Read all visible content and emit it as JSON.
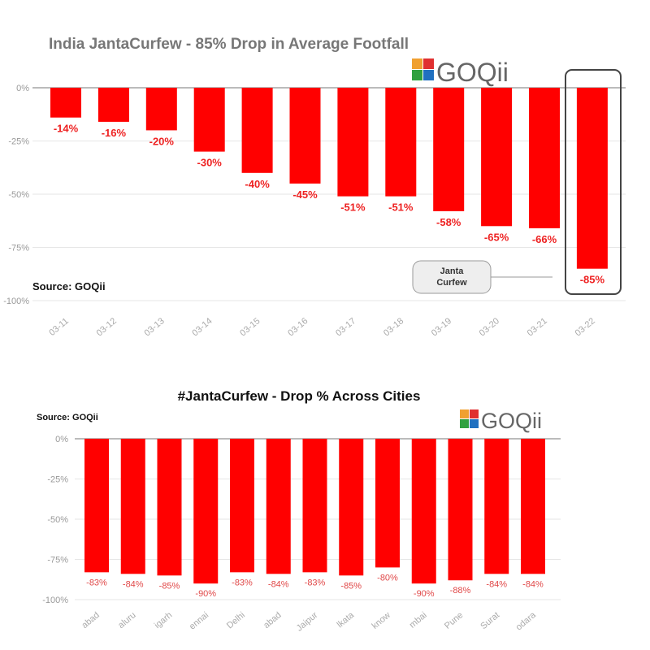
{
  "chart_data": [
    {
      "type": "bar",
      "title": "India JantaCurfew - 85% Drop in Average Footfall",
      "source": "Source: GOQii",
      "logo": "GOQii",
      "categories": [
        "03-11",
        "03-12",
        "03-13",
        "03-14",
        "03-15",
        "03-16",
        "03-17",
        "03-18",
        "03-19",
        "03-20",
        "03-21",
        "03-22"
      ],
      "values": [
        -14,
        -16,
        -20,
        -30,
        -40,
        -45,
        -51,
        -51,
        -58,
        -65,
        -66,
        -85
      ],
      "data_labels": [
        "-14%",
        "-16%",
        "-20%",
        "-30%",
        "-40%",
        "-45%",
        "-51%",
        "-51%",
        "-58%",
        "-65%",
        "-66%",
        "-85%"
      ],
      "yticks": [
        "0%",
        "-25%",
        "-50%",
        "-75%",
        "-100%"
      ],
      "ylim": [
        -100,
        0
      ],
      "grid": true,
      "bar_color": "#ff0000",
      "annotation": {
        "line1": "Janta",
        "line2": "Curfew",
        "highlighted_category": "03-22"
      }
    },
    {
      "type": "bar",
      "title": "#JantaCurfew - Drop % Across Cities",
      "source": "Source: GOQii",
      "logo": "GOQii",
      "categories": [
        "abad",
        "aluru",
        "igarh",
        "ennai",
        "Delhi",
        "abad",
        "Jaipur",
        "lkata",
        "know",
        "mbai",
        "Pune",
        "Surat",
        "odara"
      ],
      "values": [
        -83,
        -84,
        -85,
        -90,
        -83,
        -84,
        -83,
        -85,
        -80,
        -90,
        -88,
        -84,
        -84
      ],
      "data_labels": [
        "-83%",
        "-84%",
        "-85%",
        "-90%",
        "-83%",
        "-84%",
        "-83%",
        "-85%",
        "-80%",
        "-90%",
        "-88%",
        "-84%",
        "-84%"
      ],
      "yticks": [
        "0%",
        "-25%",
        "-50%",
        "-75%",
        "-100%"
      ],
      "ylim": [
        -100,
        0
      ],
      "grid": true,
      "bar_color": "#ff0000"
    }
  ],
  "logo_colors": [
    "#f0a030",
    "#e03030",
    "#30a040",
    "#2070c0"
  ]
}
